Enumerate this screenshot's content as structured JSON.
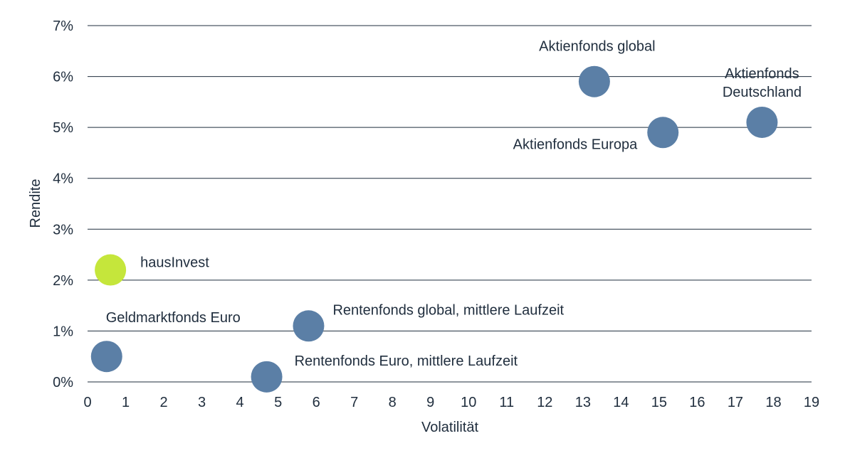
{
  "chart_data": {
    "type": "scatter",
    "title": "",
    "xlabel": "Volatilität",
    "ylabel": "Rendite",
    "xlim": [
      0,
      19
    ],
    "ylim": [
      0,
      7
    ],
    "x_ticks": [
      0,
      1,
      2,
      3,
      4,
      5,
      6,
      7,
      8,
      9,
      10,
      11,
      12,
      13,
      14,
      15,
      16,
      17,
      18,
      19
    ],
    "y_ticks": [
      0,
      1,
      2,
      3,
      4,
      5,
      6,
      7
    ],
    "y_tick_labels": [
      "0%",
      "1%",
      "2%",
      "3%",
      "4%",
      "5%",
      "6%",
      "7%"
    ],
    "grid": "horizontal",
    "legend": "none",
    "colors": {
      "default_point": "#5b7fa6",
      "highlight_point": "#c5e63b",
      "gridline": "#1f2d3d"
    },
    "points": [
      {
        "label": [
          "Geldmarktfonds Euro"
        ],
        "x": 0.5,
        "y": 0.5,
        "color": "#5b7fa6",
        "label_pos": "above-right"
      },
      {
        "label": [
          "hausInvest"
        ],
        "x": 0.6,
        "y": 2.2,
        "color": "#c5e63b",
        "label_pos": "right"
      },
      {
        "label": [
          "Rentenfonds Euro, mittlere Laufzeit"
        ],
        "x": 4.7,
        "y": 0.1,
        "color": "#5b7fa6",
        "label_pos": "above-right"
      },
      {
        "label": [
          "Rentenfonds global, mittlere Laufzeit"
        ],
        "x": 5.8,
        "y": 1.1,
        "color": "#5b7fa6",
        "label_pos": "above-right"
      },
      {
        "label": [
          "Aktienfonds global"
        ],
        "x": 13.3,
        "y": 5.9,
        "color": "#5b7fa6",
        "label_pos": "above"
      },
      {
        "label": [
          "Aktienfonds Europa"
        ],
        "x": 15.1,
        "y": 4.9,
        "color": "#5b7fa6",
        "label_pos": "left"
      },
      {
        "label": [
          "Aktienfonds",
          "Deutschland"
        ],
        "x": 17.7,
        "y": 5.1,
        "color": "#5b7fa6",
        "label_pos": "above"
      }
    ]
  }
}
